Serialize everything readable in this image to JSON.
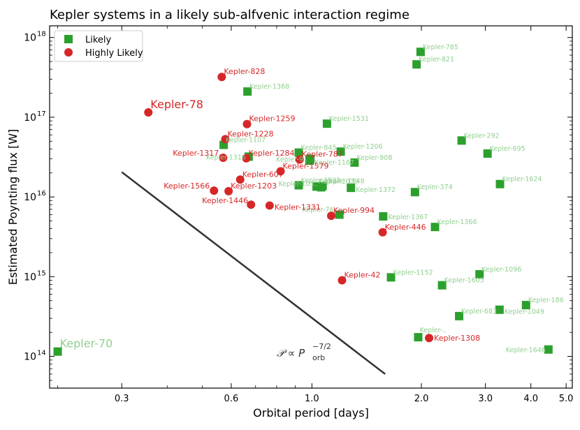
{
  "chart_data": {
    "type": "scatter",
    "title": "Kepler systems in a likely sub-alfvenic interaction regime",
    "xlabel": "Orbital period [days]",
    "ylabel": "Estimated Poynting flux [W]",
    "xscale": "log",
    "yscale": "log",
    "xlim": [
      0.19,
      5.2
    ],
    "ylim": [
      40000000000000.0,
      1.4e+18
    ],
    "x_ticks": [
      {
        "value": 0.3,
        "label": "0.3"
      },
      {
        "value": 0.6,
        "label": "0.6"
      },
      {
        "value": 1.0,
        "label": "1.0"
      },
      {
        "value": 2.0,
        "label": "2.0"
      },
      {
        "value": 3.0,
        "label": "3.0"
      },
      {
        "value": 4.0,
        "label": "4.0"
      },
      {
        "value": 5.0,
        "label": "5.0"
      }
    ],
    "y_ticks": [
      {
        "value": 100000000000000.0,
        "base": "10",
        "exp": "14"
      },
      {
        "value": 1000000000000000.0,
        "base": "10",
        "exp": "15"
      },
      {
        "value": 1e+16,
        "base": "10",
        "exp": "16"
      },
      {
        "value": 1e+17,
        "base": "10",
        "exp": "17"
      },
      {
        "value": 1e+18,
        "base": "10",
        "exp": "18"
      }
    ],
    "legend": {
      "position": "top-left",
      "entries": [
        {
          "label": "Likely",
          "marker": "square",
          "color": "#2ca02c"
        },
        {
          "label": "Highly Likely",
          "marker": "circle",
          "color": "#d62728"
        }
      ]
    },
    "colors": {
      "likely_marker": "#2ca02c",
      "likely_label": "#90cf90",
      "highly_likely": "#d62728",
      "trend_line": "#333333"
    },
    "trend_line": {
      "points": [
        [
          0.3,
          2.05e+16
        ],
        [
          1.59,
          60000000000000.0
        ]
      ],
      "label_main": "𝒫 ∝ P",
      "label_sub": "orb",
      "label_sup": "−7/2"
    },
    "series": [
      {
        "name": "Likely",
        "marker": "square",
        "points": [
          {
            "name": "Kepler-785",
            "x": 1.99,
            "y": 6.6e+17
          },
          {
            "name": "Kepler-821",
            "x": 1.94,
            "y": 4.6e+17
          },
          {
            "name": "Kepler-1368",
            "x": 0.665,
            "y": 2.1e+17
          },
          {
            "name": "Kepler-1531",
            "x": 1.1,
            "y": 8.3e+16
          },
          {
            "name": "Kepler-292",
            "x": 2.58,
            "y": 5.1e+16
          },
          {
            "name": "Kepler-1107",
            "x": 0.572,
            "y": 4.5e+16
          },
          {
            "name": "Kepler-695",
            "x": 3.04,
            "y": 3.5e+16
          },
          {
            "name": "Kepler-845",
            "x": 0.92,
            "y": 3.6e+16
          },
          {
            "name": "Kepler-1206",
            "x": 1.2,
            "y": 3.7e+16
          },
          {
            "name": "Kepler-1316",
            "x": 0.67,
            "y": 3.2e+16
          },
          {
            "name": "Kepler-9..",
            "x": 0.99,
            "y": 3e+16
          },
          {
            "name": "Kepler-1167",
            "x": 0.985,
            "y": 2.85e+16
          },
          {
            "name": "Kepler-908",
            "x": 1.31,
            "y": 2.7e+16
          },
          {
            "name": "Kepler-1532",
            "x": 0.92,
            "y": 1.4e+16
          },
          {
            "name": "Kepler-1039",
            "x": 1.03,
            "y": 1.35e+16
          },
          {
            "name": "Kepler-1148",
            "x": 1.07,
            "y": 1.37e+16
          },
          {
            "name": "Kepler-103..",
            "x": 1.06,
            "y": 1.32e+16
          },
          {
            "name": "Kepler-1372",
            "x": 1.28,
            "y": 1.3e+16
          },
          {
            "name": "Kepler-374",
            "x": 1.92,
            "y": 1.15e+16
          },
          {
            "name": "Kepler-1624",
            "x": 3.29,
            "y": 1.45e+16
          },
          {
            "name": "Kepler-76..",
            "x": 1.19,
            "y": 6000000000000000.0
          },
          {
            "name": "Kepler-1367",
            "x": 1.57,
            "y": 5700000000000000.0
          },
          {
            "name": "Kepler-1366",
            "x": 2.18,
            "y": 4200000000000000.0
          },
          {
            "name": "Kepler-1152",
            "x": 1.65,
            "y": 980000000000000.0
          },
          {
            "name": "Kepler-1096",
            "x": 2.89,
            "y": 1070000000000000.0
          },
          {
            "name": "Kepler-1603",
            "x": 2.28,
            "y": 780000000000000.0
          },
          {
            "name": "Kepler-186",
            "x": 3.88,
            "y": 440000000000000.0
          },
          {
            "name": "Kepler-1049",
            "x": 3.28,
            "y": 385000000000000.0
          },
          {
            "name": "Kepler-683",
            "x": 2.54,
            "y": 320000000000000.0
          },
          {
            "name": "Kepler-..",
            "x": 1.96,
            "y": 174000000000000.0
          },
          {
            "name": "Kepler-1646",
            "x": 4.47,
            "y": 122000000000000.0
          },
          {
            "name": "Kepler-70",
            "x": 0.2,
            "y": 115000000000000.0,
            "big": true
          }
        ]
      },
      {
        "name": "Highly Likely",
        "marker": "circle",
        "points": [
          {
            "name": "Kepler-828",
            "x": 0.565,
            "y": 3.2e+17
          },
          {
            "name": "Kepler-78",
            "x": 0.355,
            "y": 1.15e+17,
            "big": true
          },
          {
            "name": "Kepler-1259",
            "x": 0.663,
            "y": 8.2e+16
          },
          {
            "name": "Kepler-1228",
            "x": 0.578,
            "y": 5.3e+16
          },
          {
            "name": "Kepler-1317",
            "x": 0.57,
            "y": 3.1e+16
          },
          {
            "name": "Kepler-1284",
            "x": 0.66,
            "y": 3.05e+16
          },
          {
            "name": "Kepler-787",
            "x": 0.925,
            "y": 2.95e+16
          },
          {
            "name": "Kepler-1579",
            "x": 0.82,
            "y": 2.1e+16
          },
          {
            "name": "Kepler-607",
            "x": 0.635,
            "y": 1.65e+16
          },
          {
            "name": "Kepler-1566",
            "x": 0.538,
            "y": 1.2e+16
          },
          {
            "name": "Kepler-1203",
            "x": 0.59,
            "y": 1.18e+16
          },
          {
            "name": "Kepler-1446",
            "x": 0.68,
            "y": 8000000000000000.0
          },
          {
            "name": "Kepler-1331",
            "x": 0.765,
            "y": 7800000000000000.0
          },
          {
            "name": "Kepler-994",
            "x": 1.13,
            "y": 5800000000000000.0
          },
          {
            "name": "Kepler-446",
            "x": 1.565,
            "y": 3600000000000000.0
          },
          {
            "name": "Kepler-42",
            "x": 1.21,
            "y": 900000000000000.0
          },
          {
            "name": "Kepler-1308",
            "x": 2.1,
            "y": 170000000000000.0
          }
        ]
      }
    ]
  }
}
